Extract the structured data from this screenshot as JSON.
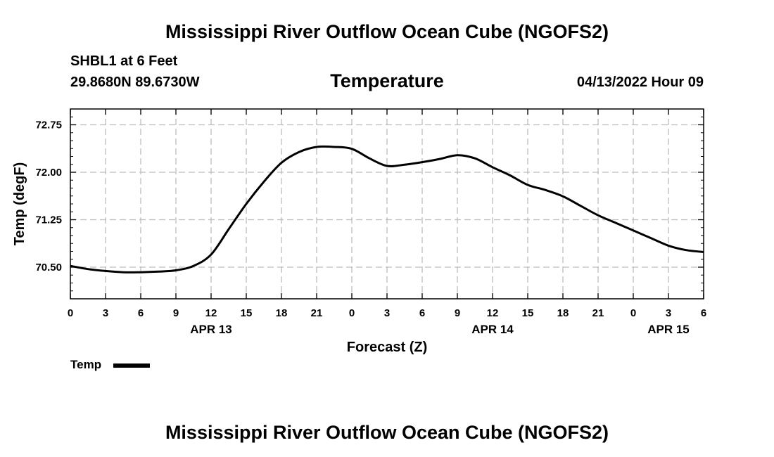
{
  "header": {
    "title_top": "Mississippi River Outflow Ocean Cube (NGOFS2)",
    "station": "SHBL1 at 6 Feet",
    "coordinates": "29.8680N  89.6730W",
    "subtitle": "Temperature",
    "datetime": "04/13/2022 Hour 09"
  },
  "legend": {
    "label": "Temp",
    "color": "#000000"
  },
  "footer": {
    "title_bottom": "Mississippi River Outflow Ocean Cube (NGOFS2)"
  },
  "chart_data": {
    "type": "line",
    "title": "Temperature",
    "xlabel": "Forecast (Z)",
    "ylabel": "Temp (degF)",
    "grid": true,
    "xlim": [
      0,
      54
    ],
    "ylim": [
      70.0,
      73.0
    ],
    "x_ticks": [
      0,
      3,
      6,
      9,
      12,
      15,
      18,
      21,
      24,
      27,
      30,
      33,
      36,
      39,
      42,
      45,
      48,
      51,
      54
    ],
    "x_tick_labels": [
      "0",
      "3",
      "6",
      "9",
      "12",
      "15",
      "18",
      "21",
      "0",
      "3",
      "6",
      "9",
      "12",
      "15",
      "18",
      "21",
      "0",
      "3",
      "6"
    ],
    "y_ticks": [
      70.5,
      71.25,
      72.0,
      72.75
    ],
    "y_tick_labels": [
      "70.50",
      "71.25",
      "72.00",
      "72.75"
    ],
    "date_labels": [
      {
        "x": 12,
        "label": "APR 13"
      },
      {
        "x": 36,
        "label": "APR 14"
      },
      {
        "x": 51,
        "label": "APR 15"
      }
    ],
    "series": [
      {
        "name": "Temp",
        "color": "#000000",
        "x": [
          0,
          1.5,
          3,
          4.5,
          6,
          7.5,
          9,
          10.5,
          12,
          13.5,
          15,
          16.5,
          18,
          19.5,
          21,
          22.5,
          24,
          25.5,
          27,
          28.5,
          30,
          31.5,
          33,
          34.5,
          36,
          37.5,
          39,
          40.5,
          42,
          43.5,
          45,
          46.5,
          48,
          49.5,
          51,
          52.5,
          54
        ],
        "values": [
          70.52,
          70.47,
          70.44,
          70.42,
          70.42,
          70.43,
          70.45,
          70.52,
          70.7,
          71.1,
          71.5,
          71.85,
          72.15,
          72.32,
          72.4,
          72.4,
          72.37,
          72.22,
          72.1,
          72.12,
          72.16,
          72.21,
          72.27,
          72.22,
          72.08,
          71.95,
          71.8,
          71.72,
          71.62,
          71.47,
          71.32,
          71.2,
          71.08,
          70.96,
          70.84,
          70.77,
          70.74
        ]
      }
    ]
  }
}
